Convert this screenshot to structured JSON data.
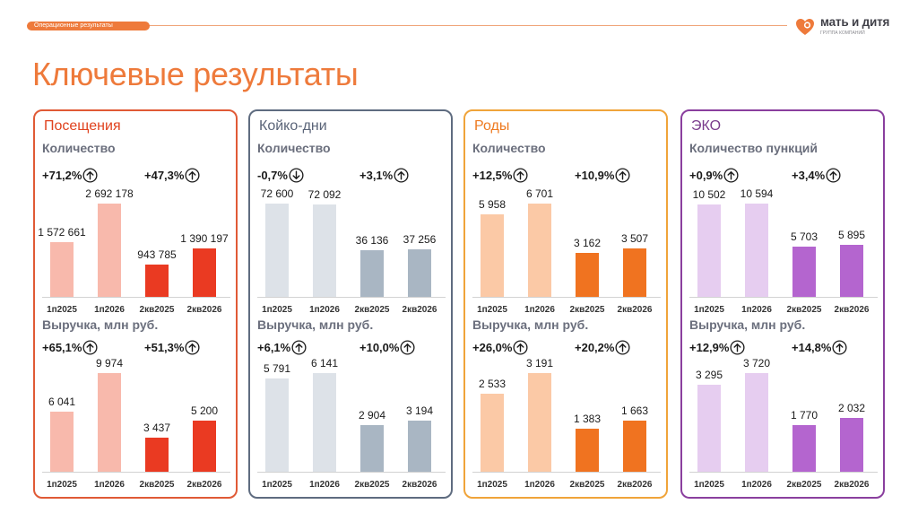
{
  "header": {
    "section_label": "Операционные результаты",
    "title": "Ключевые результаты",
    "logo_text": "мать и дитя",
    "logo_sub": "ГРУППА КОМПАНИЙ"
  },
  "colors": {
    "accent": "#ee7a3b",
    "arrow_up": "up-arrow-circle-icon",
    "arrow_down": "down-arrow-circle-icon"
  },
  "chart_data": [
    {
      "type": "bar",
      "title": "Посещения",
      "subtitle": "Количество",
      "categories": [
        "1п2025",
        "1п2026",
        "2кв2025",
        "2кв2026"
      ],
      "values": [
        1572661,
        2692178,
        943785,
        1390197
      ],
      "labels": [
        "1 572 661",
        "2 692 178",
        "943 785",
        "1 390 197"
      ],
      "changes": [
        {
          "text": "+71,2%",
          "dir": "up"
        },
        {
          "text": "+47,3%",
          "dir": "up"
        }
      ],
      "colors": [
        "#f8b9ac",
        "#f8b9ac",
        "#ea3a22",
        "#ea3a22"
      ]
    },
    {
      "type": "bar",
      "title": "Посещения",
      "subtitle": "Выручка, млн руб.",
      "categories": [
        "1п2025",
        "1п2026",
        "2кв2025",
        "2кв2026"
      ],
      "values": [
        6041,
        9974,
        3437,
        5200
      ],
      "labels": [
        "6 041",
        "9 974",
        "3 437",
        "5 200"
      ],
      "changes": [
        {
          "text": "+65,1%",
          "dir": "up"
        },
        {
          "text": "+51,3%",
          "dir": "up"
        }
      ],
      "colors": [
        "#f8b9ac",
        "#f8b9ac",
        "#ea3a22",
        "#ea3a22"
      ]
    },
    {
      "type": "bar",
      "title": "Койко-дни",
      "subtitle": "Количество",
      "categories": [
        "1п2025",
        "1п2026",
        "2кв2025",
        "2кв2026"
      ],
      "values": [
        72600,
        72092,
        36136,
        37256
      ],
      "labels": [
        "72 600",
        "72 092",
        "36 136",
        "37 256"
      ],
      "changes": [
        {
          "text": "-0,7%",
          "dir": "down"
        },
        {
          "text": "+3,1%",
          "dir": "up"
        }
      ],
      "colors": [
        "#dde2e8",
        "#dde2e8",
        "#a9b6c3",
        "#a9b6c3"
      ]
    },
    {
      "type": "bar",
      "title": "Койко-дни",
      "subtitle": "Выручка, млн руб.",
      "categories": [
        "1п2025",
        "1п2026",
        "2кв2025",
        "2кв2026"
      ],
      "values": [
        5791,
        6141,
        2904,
        3194
      ],
      "labels": [
        "5 791",
        "6 141",
        "2 904",
        "3 194"
      ],
      "changes": [
        {
          "text": "+6,1%",
          "dir": "up"
        },
        {
          "text": "+10,0%",
          "dir": "up"
        }
      ],
      "colors": [
        "#dde2e8",
        "#dde2e8",
        "#a9b6c3",
        "#a9b6c3"
      ]
    },
    {
      "type": "bar",
      "title": "Роды",
      "subtitle": "Количество",
      "categories": [
        "1п2025",
        "1п2026",
        "2кв2025",
        "2кв2026"
      ],
      "values": [
        5958,
        6701,
        3162,
        3507
      ],
      "labels": [
        "5 958",
        "6 701",
        "3 162",
        "3 507"
      ],
      "changes": [
        {
          "text": "+12,5%",
          "dir": "up"
        },
        {
          "text": "+10,9%",
          "dir": "up"
        }
      ],
      "colors": [
        "#fbc9a6",
        "#fbc9a6",
        "#f07320",
        "#f07320"
      ]
    },
    {
      "type": "bar",
      "title": "Роды",
      "subtitle": "Выручка, млн руб.",
      "categories": [
        "1п2025",
        "1п2026",
        "2кв2025",
        "2кв2026"
      ],
      "values": [
        2533,
        3191,
        1383,
        1663
      ],
      "labels": [
        "2 533",
        "3 191",
        "1 383",
        "1 663"
      ],
      "changes": [
        {
          "text": "+26,0%",
          "dir": "up"
        },
        {
          "text": "+20,2%",
          "dir": "up"
        }
      ],
      "colors": [
        "#fbc9a6",
        "#fbc9a6",
        "#f07320",
        "#f07320"
      ]
    },
    {
      "type": "bar",
      "title": "ЭКО",
      "subtitle": "Количество пункций",
      "categories": [
        "1п2025",
        "1п2026",
        "2кв2025",
        "2кв2026"
      ],
      "values": [
        10502,
        10594,
        5703,
        5895
      ],
      "labels": [
        "10 502",
        "10 594",
        "5 703",
        "5 895"
      ],
      "changes": [
        {
          "text": "+0,9%",
          "dir": "up"
        },
        {
          "text": "+3,4%",
          "dir": "up"
        }
      ],
      "colors": [
        "#e6cdf0",
        "#e6cdf0",
        "#b465cf",
        "#b465cf"
      ]
    },
    {
      "type": "bar",
      "title": "ЭКО",
      "subtitle": "Выручка, млн руб.",
      "categories": [
        "1п2025",
        "1п2026",
        "2кв2025",
        "2кв2026"
      ],
      "values": [
        3295,
        3720,
        1770,
        2032
      ],
      "labels": [
        "3 295",
        "3 720",
        "1 770",
        "2 032"
      ],
      "changes": [
        {
          "text": "+12,9%",
          "dir": "up"
        },
        {
          "text": "+14,8%",
          "dir": "up"
        }
      ],
      "colors": [
        "#e6cdf0",
        "#e6cdf0",
        "#b465cf",
        "#b465cf"
      ]
    }
  ],
  "panels": [
    {
      "title": "Посещения",
      "title_color": "#e0421e",
      "border_color": "#e05a36"
    },
    {
      "title": "Койко-дни",
      "title_color": "#5a6478",
      "border_color": "#5f6c80"
    },
    {
      "title": "Роды",
      "title_color": "#ee7a20",
      "border_color": "#f0a43a"
    },
    {
      "title": "ЭКО",
      "title_color": "#7a3c8c",
      "border_color": "#8a3f9e"
    }
  ]
}
